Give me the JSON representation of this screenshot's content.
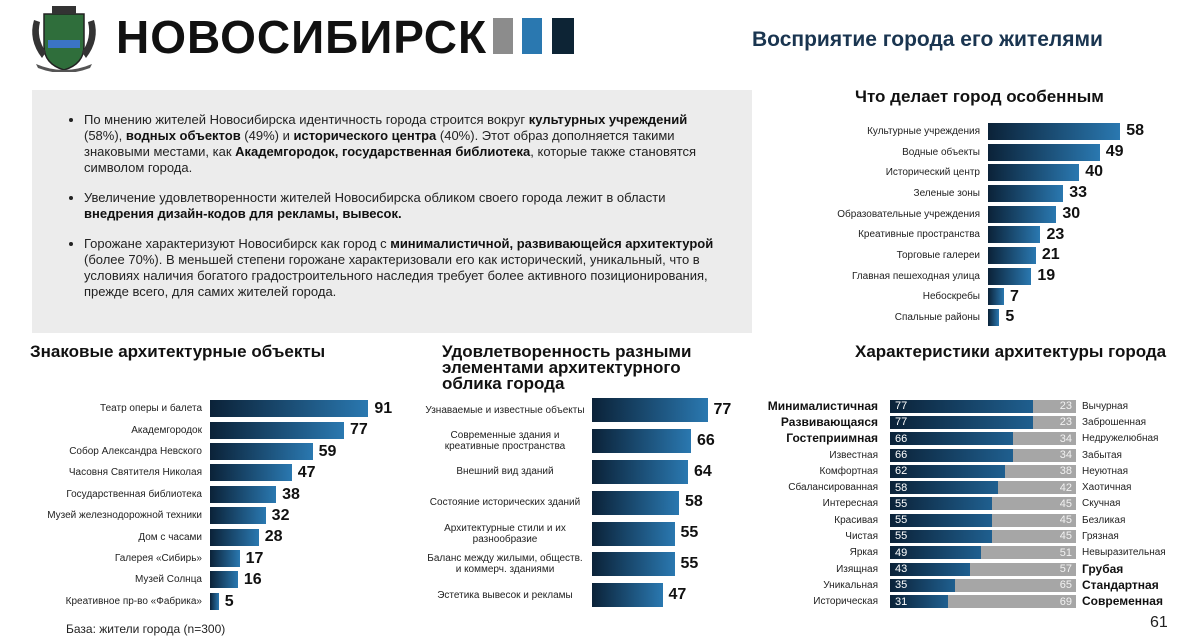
{
  "header": {
    "title": "НОВОСИБИРСК",
    "subtitle": "Восприятие города его жителями"
  },
  "bullets": [
    [
      {
        "text": "По мнению жителей Новосибирска идентичность города строится вокруг "
      },
      {
        "text": "культурных учреждений",
        "bold": true
      },
      {
        "text": " (58%), "
      },
      {
        "text": "водных объектов",
        "bold": true
      },
      {
        "text": " (49%) и "
      },
      {
        "text": "исторического центра",
        "bold": true
      },
      {
        "text": " (40%). Этот образ дополняется такими знаковыми местами, как "
      },
      {
        "text": "Академгородок, государственная библиотека",
        "bold": true
      },
      {
        "text": ", которые также становятся символом города."
      }
    ],
    [
      {
        "text": "Увеличение удовлетворенности жителей Новосибирска обликом своего города лежит в области "
      },
      {
        "text": "внедрения дизайн-кодов для рекламы, вывесок.",
        "bold": true
      }
    ],
    [
      {
        "text": "Горожане характеризуют Новосибирск как город с "
      },
      {
        "text": "минималистичной, развивающейся архитектурой",
        "bold": true
      },
      {
        "text": " (более 70%). В меньшей степени горожане характеризовали его как исторический, уникальный, что в условиях наличия богатого градостроительного наследия требует более активного позиционирования, прежде всего, для самих жителей города."
      }
    ]
  ],
  "chart_data": [
    {
      "type": "bar",
      "title": "Что делает город особенным",
      "color": "#2a78b0",
      "categories": [
        "Культурные учреждения",
        "Водные объекты",
        "Исторический центр",
        "Зеленые зоны",
        "Образовательные учреждения",
        "Креативные пространства",
        "Торговые галереи",
        "Главная пешеходная улица",
        "Небоскребы",
        "Спальные районы"
      ],
      "values": [
        58,
        49,
        40,
        33,
        30,
        23,
        21,
        19,
        7,
        5
      ]
    },
    {
      "type": "bar",
      "title": "Знаковые архитектурные объекты",
      "color": "#2a78b0",
      "categories": [
        "Театр оперы и балета",
        "Академгородок",
        "Собор Александра Невского",
        "Часовня Святителя Николая",
        "Государственная библиотека",
        "Музей железнодорожной техники",
        "Дом с часами",
        "Галерея «Сибирь»",
        "Музей Солнца",
        "Креативное пр-во «Фабрика»"
      ],
      "values": [
        91,
        77,
        59,
        47,
        38,
        32,
        28,
        17,
        16,
        5
      ]
    },
    {
      "type": "bar",
      "title": "Удовлетворенность разными элементами архитектурного облика города",
      "color": "#2a78b0",
      "categories": [
        "Узнаваемые и известные объекты",
        "Современные здания и креативные пространства",
        "Внешний вид зданий",
        "Состояние исторических зданий",
        "Архитектурные стили и их разнообразие",
        "Баланс между жилыми, обществ. и коммерч. зданиями",
        "Эстетика вывесок и рекламы"
      ],
      "values": [
        77,
        66,
        64,
        58,
        55,
        55,
        47
      ]
    },
    {
      "type": "stacked_bar",
      "title": "Характеристики архитектуры города",
      "categories": [
        "Минималистичная",
        "Развивающаяся",
        "Гостеприимная",
        "Известная",
        "Комфортная",
        "Сбалансированная",
        "Интересная",
        "Красивая",
        "Чистая",
        "Яркая",
        "Изящная",
        "Уникальная",
        "Историческая"
      ],
      "categories_bold": [
        true,
        true,
        true,
        false,
        false,
        false,
        false,
        false,
        false,
        false,
        false,
        false,
        false
      ],
      "categories_right": [
        "Вычурная",
        "Заброшенная",
        "Недружелюбная",
        "Забытая",
        "Неуютная",
        "Хаотичная",
        "Скучная",
        "Безликая",
        "Грязная",
        "Невыразительная",
        "Грубая",
        "Стандартная",
        "Современная"
      ],
      "categories_right_bold": [
        false,
        false,
        false,
        false,
        false,
        false,
        false,
        false,
        false,
        false,
        true,
        true,
        true
      ],
      "series": [
        {
          "color": "#1f5f8f",
          "values": [
            77,
            77,
            66,
            66,
            62,
            58,
            55,
            55,
            55,
            49,
            43,
            35,
            31
          ]
        },
        {
          "color": "#a6a6a6",
          "values": [
            23,
            23,
            34,
            34,
            38,
            42,
            45,
            45,
            45,
            51,
            57,
            65,
            69
          ]
        }
      ]
    }
  ],
  "footer": {
    "note": "База: жители города (n=300)",
    "page": "61"
  }
}
